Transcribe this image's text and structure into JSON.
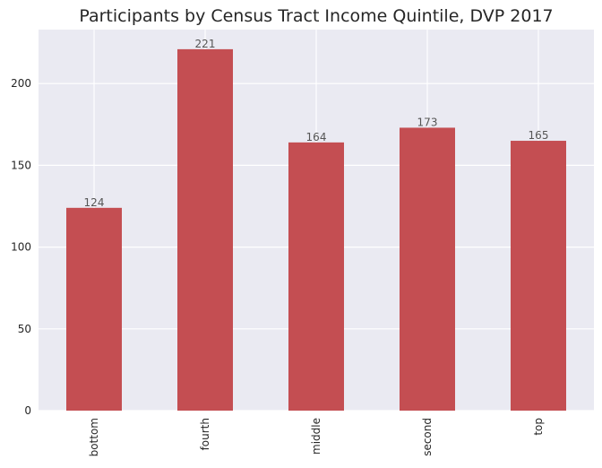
{
  "chart_data": {
    "type": "bar",
    "title": "Participants by Census Tract Income Quintile, DVP 2017",
    "xlabel": "",
    "ylabel": "",
    "categories": [
      "bottom",
      "fourth",
      "middle",
      "second",
      "top"
    ],
    "values": [
      124,
      221,
      164,
      173,
      165
    ],
    "data_labels": [
      "124",
      "221",
      "164",
      "173",
      "165"
    ],
    "ylim": [
      0,
      233
    ],
    "yticks": [
      0,
      50,
      100,
      150,
      200
    ],
    "ytick_labels": [
      "0",
      "50",
      "100",
      "150",
      "200"
    ],
    "grid": true,
    "legend": "none",
    "colors": {
      "bar": "#C44E52",
      "plot_background": "#EAEAF2",
      "grid": "#FFFFFF",
      "tick_text": "#262626",
      "data_label_text": "#555555"
    }
  }
}
